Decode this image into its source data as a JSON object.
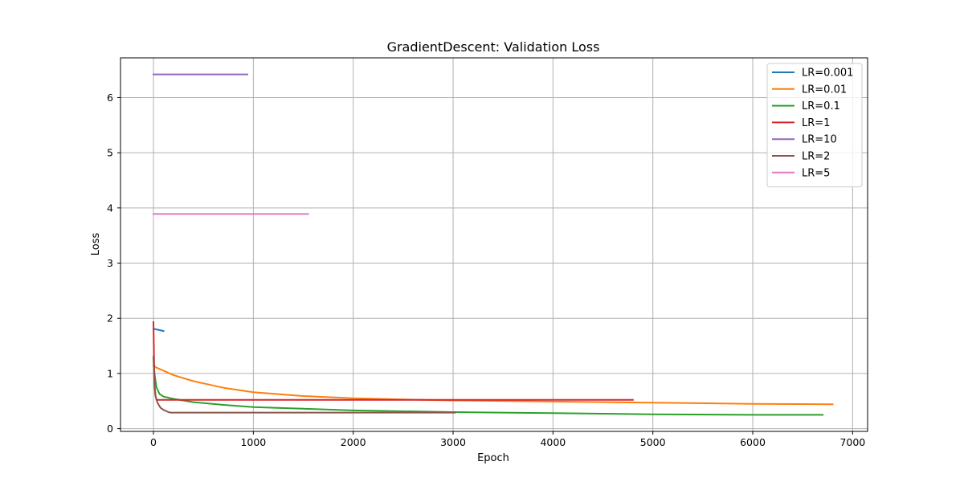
{
  "chart_data": {
    "type": "line",
    "title": "GradientDescent: Validation Loss",
    "xlabel": "Epoch",
    "ylabel": "Loss",
    "xlim": [
      -330,
      7150
    ],
    "ylim": [
      -0.05,
      6.72
    ],
    "xticks": [
      0,
      1000,
      2000,
      3000,
      4000,
      5000,
      6000,
      7000
    ],
    "yticks": [
      0,
      1,
      2,
      3,
      4,
      5,
      6
    ],
    "grid": true,
    "legend_position": "top-right",
    "series": [
      {
        "name": "LR=0.001",
        "color": "#1f77b4",
        "points": [
          [
            0,
            1.81
          ],
          [
            50,
            1.79
          ],
          [
            100,
            1.77
          ]
        ]
      },
      {
        "name": "LR=0.01",
        "color": "#ff7f0e",
        "points": [
          [
            0,
            1.15
          ],
          [
            25,
            1.11
          ],
          [
            100,
            1.05
          ],
          [
            200,
            0.97
          ],
          [
            400,
            0.86
          ],
          [
            700,
            0.74
          ],
          [
            1000,
            0.66
          ],
          [
            1500,
            0.59
          ],
          [
            2000,
            0.55
          ],
          [
            2500,
            0.53
          ],
          [
            3000,
            0.51
          ],
          [
            4000,
            0.49
          ],
          [
            5000,
            0.47
          ],
          [
            6000,
            0.45
          ],
          [
            6800,
            0.44
          ]
        ]
      },
      {
        "name": "LR=0.1",
        "color": "#2ca02c",
        "points": [
          [
            0,
            1.3
          ],
          [
            10,
            1.0
          ],
          [
            30,
            0.75
          ],
          [
            60,
            0.63
          ],
          [
            100,
            0.58
          ],
          [
            200,
            0.54
          ],
          [
            400,
            0.48
          ],
          [
            700,
            0.43
          ],
          [
            1000,
            0.39
          ],
          [
            1500,
            0.36
          ],
          [
            2000,
            0.33
          ],
          [
            3000,
            0.3
          ],
          [
            4000,
            0.28
          ],
          [
            5000,
            0.26
          ],
          [
            6000,
            0.25
          ],
          [
            6700,
            0.25
          ]
        ]
      },
      {
        "name": "LR=1",
        "color": "#d62728",
        "points": [
          [
            0,
            1.93
          ],
          [
            5,
            1.3
          ],
          [
            10,
            0.8
          ],
          [
            20,
            0.6
          ],
          [
            30,
            0.52
          ],
          [
            100,
            0.52
          ],
          [
            1000,
            0.52
          ],
          [
            3000,
            0.52
          ],
          [
            4800,
            0.52
          ]
        ]
      },
      {
        "name": "LR=10",
        "color": "#9467bd",
        "points": [
          [
            0,
            6.42
          ],
          [
            940,
            6.42
          ]
        ]
      },
      {
        "name": "LR=2",
        "color": "#8c564b",
        "points": [
          [
            0,
            1.3
          ],
          [
            10,
            0.8
          ],
          [
            20,
            0.6
          ],
          [
            40,
            0.47
          ],
          [
            70,
            0.38
          ],
          [
            100,
            0.34
          ],
          [
            150,
            0.3
          ],
          [
            170,
            0.29
          ],
          [
            500,
            0.29
          ],
          [
            1000,
            0.29
          ],
          [
            2000,
            0.29
          ],
          [
            3020,
            0.29
          ]
        ]
      },
      {
        "name": "LR=5",
        "color": "#e377c2",
        "points": [
          [
            0,
            3.89
          ],
          [
            1550,
            3.89
          ]
        ]
      }
    ]
  }
}
